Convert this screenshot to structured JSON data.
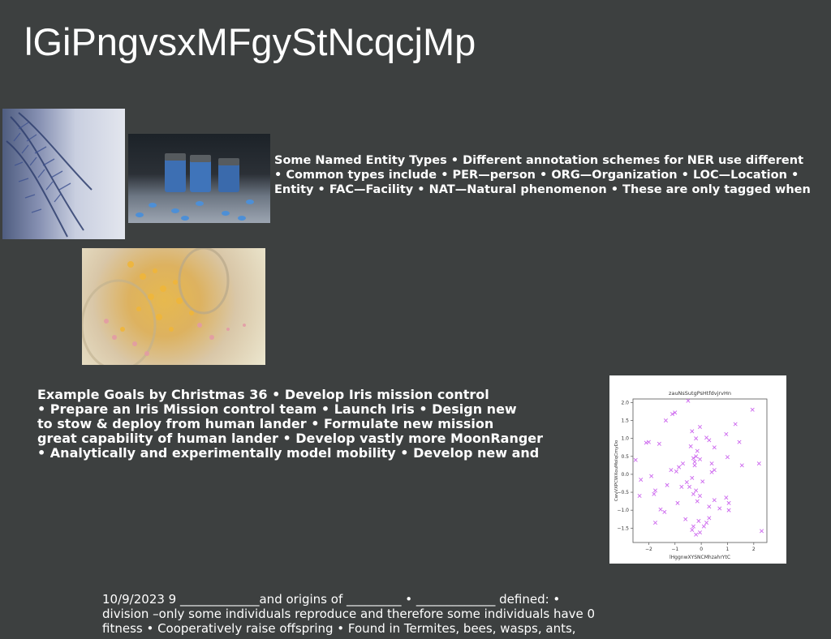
{
  "slide": {
    "title": "lGiPngvsxMFgyStNcqcjMp"
  },
  "images": [
    {
      "name": "blue-fern-photo"
    },
    {
      "name": "blue-jars-and-pills-photo"
    },
    {
      "name": "spilling-glitter-jar-photo"
    }
  ],
  "ner_text": {
    "lines": [
      "Some Named Entity Types • Different annotation schemes for NER use different",
      "• Common types include • PER—person • ORG—Organization • LOC—Location •",
      "Entity • FAC—Facility • NAT—Natural phenomenon • These are only tagged when"
    ]
  },
  "goals_text": {
    "lines": [
      "Example Goals by Christmas 36 • Develop Iris mission control",
      "• Prepare an Iris Mission control team • Launch Iris • Design new",
      "to stow & deploy from human lander • Formulate new mission",
      "great capability of human lander • Develop vastly more MoonRanger",
      "• Analytically and experimentally model mobility • Develop new and"
    ]
  },
  "footer_text": {
    "lines": [
      "10/9/2023 9 _____________and origins of _________ • _____________ defined: •",
      "division –only some individuals reproduce and therefore some individuals have 0",
      "fitness • Cooperatively raise offspring • Found in Termites, bees, wasps, ants,"
    ]
  },
  "chart_data": {
    "type": "scatter",
    "title": "zauNsSutgPsHtfdvjrvHn",
    "xlabel": "lHggnwXYSNCMhzahrYtC",
    "ylabel": "CwvVXPCWXouMolqCmyDo",
    "xlim": [
      -2.6,
      2.5
    ],
    "ylim": [
      -1.9,
      2.1
    ],
    "xticks": [
      -2,
      -1,
      0,
      1,
      2
    ],
    "yticks": [
      -1.5,
      -1.0,
      -0.5,
      0.0,
      0.5,
      1.0,
      1.5,
      2.0
    ],
    "xtick_labels": [
      "−2",
      "−1",
      "0",
      "1",
      "2"
    ],
    "ytick_labels": [
      "−1.5",
      "−1.0",
      "−0.5",
      "0.0",
      "0.5",
      "1.0",
      "1.5",
      "2.0"
    ],
    "marker": "x",
    "color": "#cc66ee",
    "points": [
      [
        -0.5,
        2.05
      ],
      [
        -1.0,
        1.72
      ],
      [
        -1.1,
        1.68
      ],
      [
        -1.35,
        1.5
      ],
      [
        -0.05,
        1.32
      ],
      [
        1.3,
        1.4
      ],
      [
        1.95,
        1.8
      ],
      [
        0.95,
        1.12
      ],
      [
        -0.35,
        1.2
      ],
      [
        1.45,
        0.9
      ],
      [
        -0.2,
        1.0
      ],
      [
        0.3,
        0.95
      ],
      [
        0.2,
        1.02
      ],
      [
        -2.0,
        0.9
      ],
      [
        -2.1,
        0.88
      ],
      [
        -1.6,
        0.85
      ],
      [
        -0.4,
        0.78
      ],
      [
        0.5,
        0.75
      ],
      [
        -0.15,
        0.65
      ],
      [
        -0.2,
        0.5
      ],
      [
        -0.3,
        0.45
      ],
      [
        -0.05,
        0.42
      ],
      [
        -0.25,
        0.35
      ],
      [
        -0.7,
        0.3
      ],
      [
        0.4,
        0.3
      ],
      [
        1.0,
        0.48
      ],
      [
        -2.5,
        0.4
      ],
      [
        -0.85,
        0.2
      ],
      [
        -1.15,
        0.12
      ],
      [
        -0.95,
        0.08
      ],
      [
        0.4,
        0.06
      ],
      [
        0.5,
        0.12
      ],
      [
        -2.3,
        -0.15
      ],
      [
        -1.9,
        -0.05
      ],
      [
        1.55,
        0.25
      ],
      [
        2.2,
        0.3
      ],
      [
        -0.35,
        -0.1
      ],
      [
        -0.55,
        -0.22
      ],
      [
        0.05,
        -0.2
      ],
      [
        -0.45,
        -0.35
      ],
      [
        -0.75,
        -0.35
      ],
      [
        -1.3,
        -0.3
      ],
      [
        -0.2,
        -0.45
      ],
      [
        -0.3,
        -0.55
      ],
      [
        -0.05,
        -0.6
      ],
      [
        -1.75,
        -0.45
      ],
      [
        -1.8,
        -0.55
      ],
      [
        0.95,
        -0.65
      ],
      [
        0.5,
        -0.72
      ],
      [
        -0.15,
        -0.75
      ],
      [
        1.05,
        -0.8
      ],
      [
        0.3,
        -0.9
      ],
      [
        -0.9,
        -0.8
      ],
      [
        -1.4,
        -1.05
      ],
      [
        -1.55,
        -0.98
      ],
      [
        0.7,
        -0.95
      ],
      [
        -1.75,
        -1.35
      ],
      [
        0.3,
        -1.22
      ],
      [
        -0.6,
        -1.25
      ],
      [
        -0.1,
        -1.3
      ],
      [
        -0.3,
        -1.45
      ],
      [
        0.2,
        -1.35
      ],
      [
        -0.05,
        -1.62
      ],
      [
        -0.35,
        -1.55
      ],
      [
        -0.2,
        -1.68
      ],
      [
        0.1,
        -1.45
      ],
      [
        -2.35,
        -0.6
      ],
      [
        2.3,
        -1.58
      ],
      [
        1.05,
        -1.0
      ],
      [
        -0.25,
        0.25
      ]
    ]
  }
}
